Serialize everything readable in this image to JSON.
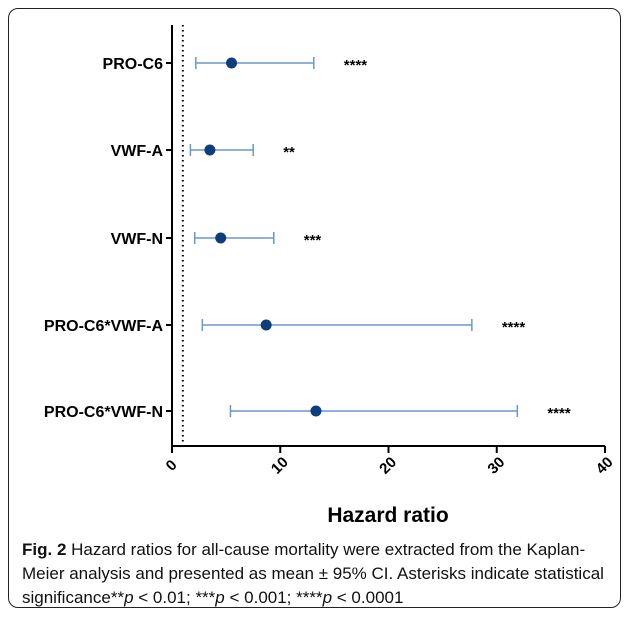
{
  "chart_data": {
    "type": "forest",
    "xlabel": "Hazard ratio",
    "xlim": [
      0,
      40
    ],
    "xticks": [
      "0",
      "10",
      "20",
      "30",
      "40"
    ],
    "reference_line": 1,
    "categories": [
      "PRO-C6",
      "VWF-A",
      "VWF-N",
      "PRO-C6*VWF-A",
      "PRO-C6*VWF-N"
    ],
    "estimates": [
      5.5,
      3.5,
      4.5,
      8.7,
      13.3
    ],
    "lower": [
      2.2,
      1.7,
      2.1,
      2.8,
      5.4
    ],
    "upper": [
      13.1,
      7.5,
      9.4,
      27.7,
      31.9
    ],
    "significance": [
      "****",
      "**",
      "***",
      "****",
      "****"
    ],
    "colors": {
      "point": "#0d3d7a",
      "ci": "#6b97cc",
      "axis": "#000000"
    }
  },
  "caption": {
    "label": "Fig. 2",
    "text": " Hazard ratios for all-cause mortality were extracted from the Kaplan-Meier analysis and presented as mean ± 95% CI. Asterisks indicate statistical significance**",
    "p1": "p",
    "t1": " < 0.01; ***",
    "p2": "p",
    "t2": " < 0.001; ****",
    "p3": "p",
    "t3": " < 0.0001"
  }
}
